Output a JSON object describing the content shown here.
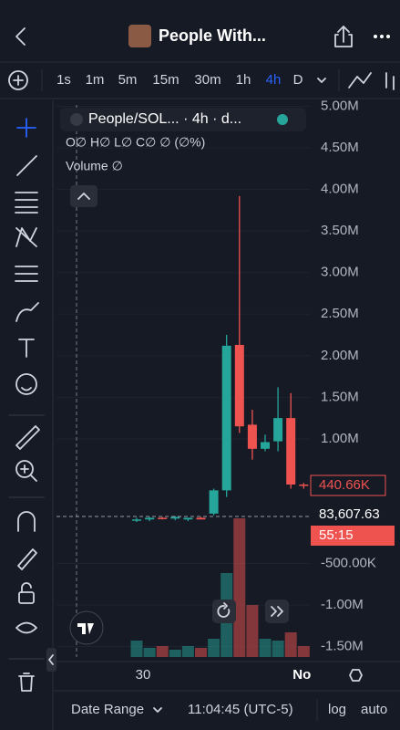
{
  "header": {
    "title": "People With..."
  },
  "timeframes": [
    "1s",
    "1m",
    "5m",
    "15m",
    "30m",
    "1h",
    "4h",
    "D"
  ],
  "active_timeframe": "4h",
  "legend": {
    "symbol": "People/SOL... · 4h · d...",
    "ohlc": "O∅ H∅ L∅ C∅ ∅ (∅%)",
    "volume": "Volume ∅"
  },
  "chart_data": {
    "type": "candlestick",
    "categories": [
      "30",
      null,
      null,
      null,
      null,
      null,
      null,
      null,
      null,
      null,
      null,
      null,
      null,
      "No"
    ],
    "open": [
      20000,
      30000,
      50000,
      40000,
      30000,
      50000,
      100000,
      380000,
      2130000,
      1170000,
      880000,
      970000,
      1250000,
      450000
    ],
    "high": [
      50000,
      60000,
      60000,
      70000,
      50000,
      60000,
      400000,
      2250000,
      3920000,
      1350000,
      1050000,
      1620000,
      1550000,
      470000
    ],
    "low": [
      0,
      10000,
      30000,
      20000,
      10000,
      30000,
      80000,
      300000,
      1070000,
      750000,
      850000,
      850000,
      400000,
      400000
    ],
    "close": [
      30000,
      50000,
      40000,
      60000,
      50000,
      30000,
      380000,
      2120000,
      1150000,
      880000,
      960000,
      1250000,
      450000,
      440660
    ],
    "volume": [
      18,
      10,
      12,
      8,
      12,
      10,
      20,
      92,
      152,
      57,
      20,
      18,
      27,
      12
    ],
    "up_color": "#26a69a",
    "down_color": "#ef5350",
    "ylim": [
      -1680000,
      5050000
    ],
    "yticks": [
      {
        "value": 5000000,
        "label": "5.00M"
      },
      {
        "value": 4500000,
        "label": "4.50M"
      },
      {
        "value": 4000000,
        "label": "4.00M"
      },
      {
        "value": 3500000,
        "label": "3.50M"
      },
      {
        "value": 3000000,
        "label": "3.00M"
      },
      {
        "value": 2500000,
        "label": "2.50M"
      },
      {
        "value": 2000000,
        "label": "2.00M"
      },
      {
        "value": 1500000,
        "label": "1.50M"
      },
      {
        "value": 1000000,
        "label": "1.00M"
      },
      {
        "value": -500000,
        "label": "-500.00K"
      },
      {
        "value": -1000000,
        "label": "-1.00M"
      },
      {
        "value": -1500000,
        "label": "-1.50M"
      }
    ],
    "grid": true
  },
  "price_labels": {
    "last": "440.66K",
    "volume": "83,607.63",
    "countdown": "55:15"
  },
  "footer": {
    "date_range": "Date Range",
    "time": "11:04:45 (UTC-5)",
    "log": "log",
    "auto": "auto"
  }
}
